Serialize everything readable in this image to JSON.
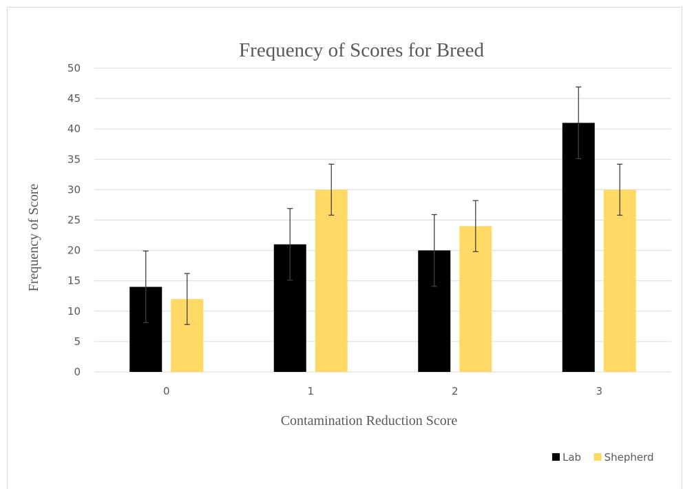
{
  "chart_data": {
    "type": "bar",
    "title": "Frequency of Scores for Breed",
    "xlabel": "Contamination Reduction Score",
    "ylabel": "Frequency of Score",
    "categories": [
      "0",
      "1",
      "2",
      "3"
    ],
    "ylim": [
      0,
      50
    ],
    "ytick_step": 5,
    "grid": true,
    "legend_position": "bottom-right",
    "series": [
      {
        "name": "Lab",
        "color": "#000000",
        "values": [
          14,
          21,
          20,
          41
        ],
        "error_low": [
          8.1,
          15.1,
          14.1,
          35.1
        ],
        "error_high": [
          19.9,
          26.9,
          25.9,
          46.9
        ]
      },
      {
        "name": "Shepherd",
        "color": "#ffd966",
        "values": [
          12,
          30,
          24,
          30
        ],
        "error_low": [
          7.8,
          25.8,
          19.8,
          25.8
        ],
        "error_high": [
          16.2,
          34.2,
          28.2,
          34.2
        ]
      }
    ]
  }
}
